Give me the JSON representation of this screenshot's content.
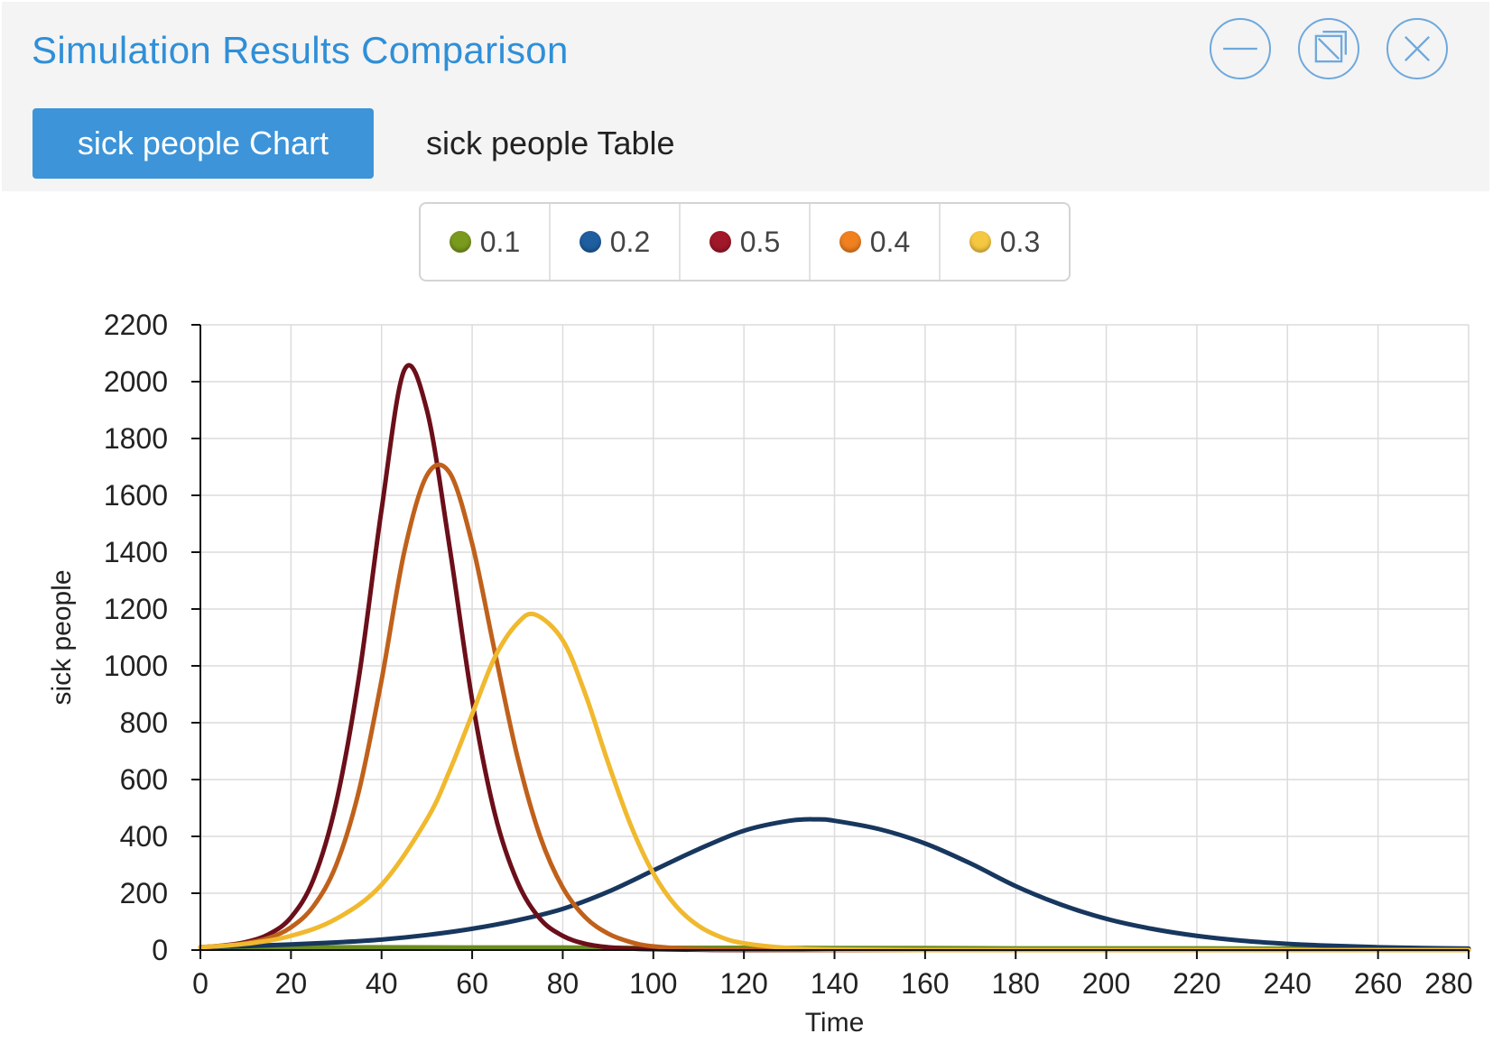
{
  "window": {
    "title": "Simulation Results Comparison",
    "buttons": [
      {
        "name": "minimize-button",
        "icon": "minimize-icon"
      },
      {
        "name": "popout-button",
        "icon": "popout-icon"
      },
      {
        "name": "close-button",
        "icon": "close-icon"
      }
    ],
    "accent_color": "#2f8fd8"
  },
  "tabs": {
    "chart_label": "sick people Chart",
    "table_label": "sick people Table",
    "active": "chart"
  },
  "legend": [
    {
      "label": "0.1",
      "color": "#7a9a1e"
    },
    {
      "label": "0.2",
      "color": "#1f5fa0"
    },
    {
      "label": "0.5",
      "color": "#a0182a"
    },
    {
      "label": "0.4",
      "color": "#f08020"
    },
    {
      "label": "0.3",
      "color": "#f5c842"
    }
  ],
  "chart_data": {
    "type": "line",
    "title": "",
    "xlabel": "Time",
    "ylabel": "sick people",
    "xlim": [
      0,
      280
    ],
    "ylim": [
      0,
      2200
    ],
    "xticks": [
      0,
      20,
      40,
      60,
      80,
      100,
      120,
      140,
      160,
      180,
      200,
      220,
      240,
      260,
      280
    ],
    "yticks": [
      0,
      200,
      400,
      600,
      800,
      1000,
      1200,
      1400,
      1600,
      1800,
      2000,
      2200
    ],
    "xtick_labels": [
      "0",
      "20",
      "40",
      "60",
      "80",
      "100",
      "120",
      "140",
      "160",
      "180",
      "200",
      "220",
      "240",
      "260",
      "280"
    ],
    "ytick_labels": [
      "0",
      "200",
      "400",
      "600",
      "800",
      "1000",
      "1200",
      "1400",
      "1600",
      "1800",
      "2000",
      "2200"
    ],
    "grid": true,
    "legend_position": "top",
    "series": [
      {
        "name": "0.1",
        "color": "#6b8c1f",
        "x": [
          0,
          20,
          40,
          60,
          80,
          100,
          120,
          140,
          160,
          180,
          200,
          220,
          240,
          260,
          280
        ],
        "y": [
          10,
          10,
          10,
          9,
          9,
          8,
          8,
          7,
          7,
          6,
          6,
          6,
          5,
          5,
          5
        ]
      },
      {
        "name": "0.2",
        "color": "#17375e",
        "x": [
          0,
          10,
          20,
          30,
          40,
          50,
          60,
          70,
          80,
          90,
          100,
          110,
          120,
          130,
          136,
          140,
          150,
          160,
          170,
          180,
          190,
          200,
          210,
          220,
          230,
          240,
          250,
          260,
          270,
          280
        ],
        "y": [
          10,
          14,
          20,
          27,
          37,
          53,
          75,
          105,
          145,
          205,
          280,
          355,
          420,
          455,
          460,
          455,
          425,
          375,
          305,
          225,
          160,
          110,
          75,
          50,
          33,
          22,
          15,
          10,
          7,
          5
        ]
      },
      {
        "name": "0.5",
        "color": "#6b0f1a",
        "x": [
          0,
          5,
          10,
          15,
          20,
          25,
          30,
          35,
          40,
          45,
          50,
          55,
          60,
          65,
          70,
          75,
          80,
          85,
          90,
          95,
          100,
          110,
          120,
          140,
          160,
          200,
          240,
          280
        ],
        "y": [
          10,
          16,
          28,
          55,
          115,
          250,
          520,
          960,
          1550,
          2040,
          1900,
          1420,
          880,
          480,
          240,
          110,
          50,
          22,
          10,
          5,
          3,
          1,
          0,
          0,
          0,
          0,
          0,
          0
        ]
      },
      {
        "name": "0.4",
        "color": "#c0611b",
        "x": [
          0,
          5,
          10,
          15,
          20,
          25,
          30,
          35,
          40,
          45,
          50,
          55,
          60,
          65,
          70,
          75,
          80,
          85,
          90,
          95,
          100,
          110,
          120,
          140,
          160,
          200,
          240,
          280
        ],
        "y": [
          10,
          15,
          24,
          42,
          80,
          155,
          300,
          560,
          950,
          1400,
          1670,
          1680,
          1430,
          1050,
          680,
          400,
          220,
          115,
          58,
          28,
          13,
          3,
          1,
          0,
          0,
          0,
          0,
          0
        ]
      },
      {
        "name": "0.3",
        "color": "#f0b92e",
        "x": [
          0,
          10,
          20,
          30,
          40,
          50,
          55,
          60,
          65,
          70,
          74,
          80,
          85,
          90,
          95,
          100,
          105,
          110,
          115,
          120,
          130,
          140,
          160,
          200,
          240,
          280
        ],
        "y": [
          10,
          22,
          50,
          110,
          230,
          460,
          630,
          830,
          1030,
          1150,
          1180,
          1090,
          900,
          660,
          440,
          270,
          155,
          85,
          45,
          24,
          7,
          2,
          0,
          0,
          0,
          0
        ]
      }
    ]
  }
}
